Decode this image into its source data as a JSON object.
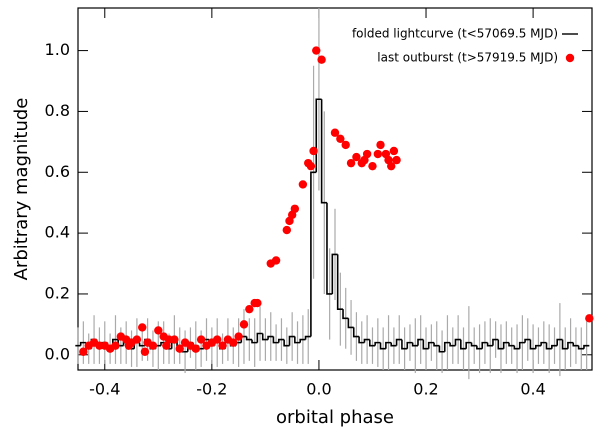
{
  "chart_data": {
    "type": "line",
    "xlabel": "orbital phase",
    "ylabel": "Arbitrary magnitude",
    "xlim": [
      -0.45,
      0.51
    ],
    "ylim": [
      -0.05,
      1.14
    ],
    "xticks": [
      -0.4,
      -0.2,
      {
        "value": 0,
        "label": "0.0"
      },
      0.2,
      0.4
    ],
    "yticks": [
      {
        "value": 0,
        "label": "0.0"
      },
      0.2,
      0.4,
      0.6,
      0.8,
      {
        "value": 1,
        "label": "1.0"
      }
    ],
    "legend": "upper right",
    "series": [
      {
        "name": "folded lightcurve (t<57069.5 MJD)",
        "type": "step",
        "color": "#000000",
        "error_color": "#aaaaaa",
        "x": [
          -0.45,
          -0.44,
          -0.43,
          -0.42,
          -0.41,
          -0.4,
          -0.39,
          -0.38,
          -0.37,
          -0.36,
          -0.35,
          -0.34,
          -0.33,
          -0.32,
          -0.31,
          -0.3,
          -0.29,
          -0.28,
          -0.27,
          -0.26,
          -0.25,
          -0.24,
          -0.23,
          -0.22,
          -0.21,
          -0.2,
          -0.19,
          -0.18,
          -0.17,
          -0.16,
          -0.15,
          -0.14,
          -0.13,
          -0.12,
          -0.11,
          -0.1,
          -0.09,
          -0.08,
          -0.07,
          -0.06,
          -0.05,
          -0.04,
          -0.03,
          -0.02,
          -0.01,
          0.0,
          0.01,
          0.02,
          0.03,
          0.04,
          0.05,
          0.06,
          0.07,
          0.08,
          0.09,
          0.1,
          0.11,
          0.12,
          0.13,
          0.14,
          0.15,
          0.16,
          0.17,
          0.18,
          0.19,
          0.2,
          0.21,
          0.22,
          0.23,
          0.24,
          0.25,
          0.26,
          0.27,
          0.28,
          0.29,
          0.3,
          0.31,
          0.32,
          0.33,
          0.34,
          0.35,
          0.36,
          0.37,
          0.38,
          0.39,
          0.4,
          0.41,
          0.42,
          0.43,
          0.44,
          0.45,
          0.46,
          0.47,
          0.48,
          0.49,
          0.5
        ],
        "values": [
          0.03,
          0.04,
          0.02,
          0.05,
          0.03,
          0.04,
          0.02,
          0.05,
          0.03,
          0.04,
          0.02,
          0.04,
          0.03,
          0.05,
          0.02,
          0.03,
          0.04,
          0.02,
          0.05,
          0.03,
          0.01,
          0.04,
          0.03,
          0.02,
          0.05,
          0.03,
          0.04,
          0.02,
          0.05,
          0.03,
          0.04,
          0.06,
          0.05,
          0.04,
          0.07,
          0.05,
          0.06,
          0.04,
          0.05,
          0.03,
          0.06,
          0.04,
          0.05,
          0.06,
          0.6,
          0.84,
          0.5,
          0.2,
          0.33,
          0.15,
          0.12,
          0.09,
          0.06,
          0.04,
          0.05,
          0.03,
          0.04,
          0.02,
          0.04,
          0.03,
          0.05,
          0.02,
          0.04,
          0.03,
          0.05,
          0.02,
          0.04,
          0.03,
          0.01,
          0.04,
          0.03,
          0.05,
          0.02,
          0.04,
          0.03,
          0.02,
          0.04,
          0.03,
          0.05,
          0.02,
          0.04,
          0.03,
          0.02,
          0.04,
          0.05,
          0.02,
          0.03,
          0.04,
          0.02,
          0.03,
          0.05,
          0.02,
          0.04,
          0.03,
          0.02,
          0.03
        ],
        "errors": [
          0.06,
          0.07,
          0.05,
          0.08,
          0.06,
          0.07,
          0.05,
          0.08,
          0.06,
          0.07,
          0.06,
          0.08,
          0.05,
          0.07,
          0.06,
          0.08,
          0.07,
          0.05,
          0.08,
          0.06,
          0.07,
          0.05,
          0.08,
          0.06,
          0.07,
          0.06,
          0.08,
          0.05,
          0.07,
          0.06,
          0.08,
          0.09,
          0.07,
          0.08,
          0.09,
          0.07,
          0.08,
          0.06,
          0.07,
          0.06,
          0.08,
          0.07,
          0.08,
          0.09,
          0.35,
          0.3,
          0.3,
          0.15,
          0.15,
          0.12,
          0.1,
          0.09,
          0.08,
          0.07,
          0.08,
          0.06,
          0.08,
          0.07,
          0.09,
          0.06,
          0.08,
          0.07,
          0.06,
          0.09,
          0.08,
          0.07,
          0.06,
          0.08,
          0.07,
          0.09,
          0.06,
          0.08,
          0.07,
          0.12,
          0.06,
          0.08,
          0.07,
          0.09,
          0.06,
          0.08,
          0.07,
          0.06,
          0.08,
          0.09,
          0.07,
          0.08,
          0.06,
          0.07,
          0.08,
          0.06,
          0.12,
          0.07,
          0.08,
          0.06,
          0.07,
          0.08
        ]
      },
      {
        "name": "last outburst (t>57919.5 MJD)",
        "type": "scatter",
        "color": "#ff0000",
        "x": [
          -0.44,
          -0.43,
          -0.42,
          -0.41,
          -0.4,
          -0.39,
          -0.38,
          -0.37,
          -0.36,
          -0.355,
          -0.35,
          -0.34,
          -0.33,
          -0.325,
          -0.32,
          -0.31,
          -0.3,
          -0.29,
          -0.285,
          -0.28,
          -0.27,
          -0.26,
          -0.25,
          -0.24,
          -0.23,
          -0.22,
          -0.21,
          -0.2,
          -0.19,
          -0.18,
          -0.17,
          -0.16,
          -0.15,
          -0.14,
          -0.13,
          -0.12,
          -0.115,
          -0.09,
          -0.08,
          -0.06,
          -0.055,
          -0.05,
          -0.045,
          -0.03,
          -0.02,
          -0.015,
          -0.01,
          -0.005,
          0.005,
          0.03,
          0.04,
          0.05,
          0.06,
          0.07,
          0.08,
          0.085,
          0.09,
          0.1,
          0.11,
          0.115,
          0.125,
          0.13,
          0.135,
          0.14,
          0.145,
          0.505,
          0.525
        ],
        "values": [
          0.01,
          0.03,
          0.04,
          0.03,
          0.03,
          0.02,
          0.03,
          0.06,
          0.05,
          0.03,
          0.04,
          0.05,
          0.09,
          0.01,
          0.04,
          0.03,
          0.08,
          0.06,
          0.03,
          0.05,
          0.05,
          0.02,
          0.04,
          0.03,
          0.02,
          0.05,
          0.03,
          0.04,
          0.05,
          0.03,
          0.05,
          0.04,
          0.06,
          0.1,
          0.15,
          0.17,
          0.17,
          0.3,
          0.31,
          0.41,
          0.44,
          0.46,
          0.48,
          0.56,
          0.63,
          0.62,
          0.67,
          1.0,
          0.97,
          0.73,
          0.71,
          0.69,
          0.63,
          0.65,
          0.63,
          0.64,
          0.66,
          0.62,
          0.66,
          0.69,
          0.66,
          0.64,
          0.62,
          0.67,
          0.64,
          0.12,
          0.06
        ]
      }
    ]
  }
}
